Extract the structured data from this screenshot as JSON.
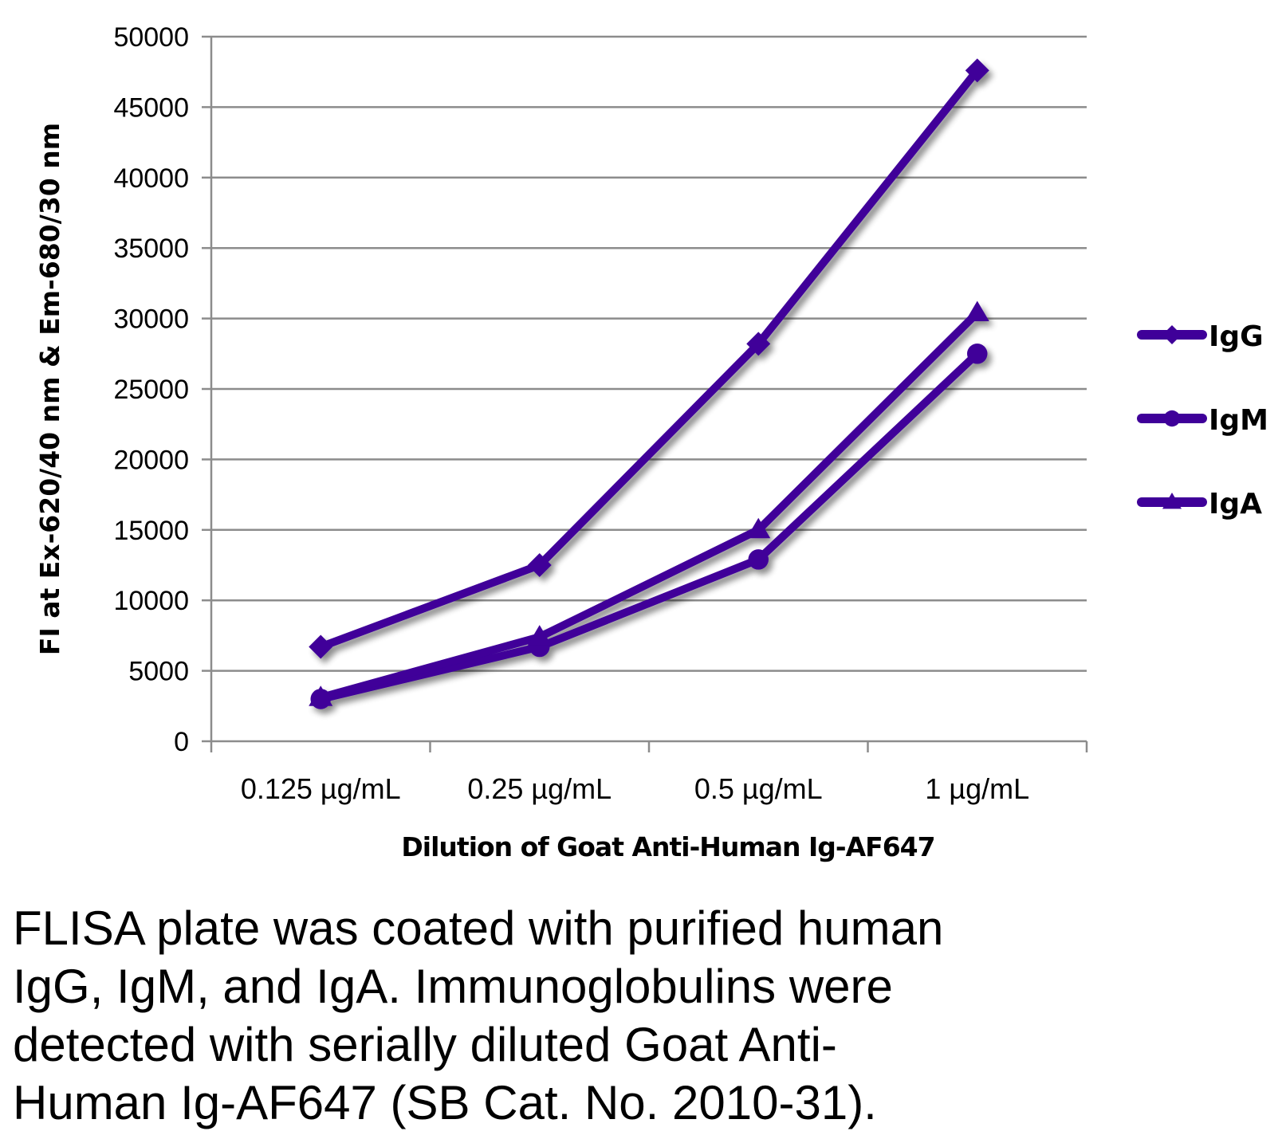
{
  "chart_data": {
    "type": "line",
    "title": "",
    "xlabel": "Dilution of Goat Anti-Human Ig-AF647",
    "ylabel": "FI at Ex-620/40 nm & Em-680/30 nm",
    "categories": [
      "0.125 µg/mL",
      "0.25 µg/mL",
      "0.5 µg/mL",
      "1 µg/mL"
    ],
    "ylim": [
      0,
      50000
    ],
    "yticks": [
      "0",
      "5000",
      "10000",
      "15000",
      "20000",
      "25000",
      "30000",
      "35000",
      "40000",
      "45000",
      "50000"
    ],
    "grid": true,
    "legend": "right",
    "series": [
      {
        "name": "IgG",
        "marker": "diamond",
        "values": [
          6700,
          12500,
          28200,
          47600
        ]
      },
      {
        "name": "IgM",
        "marker": "circle",
        "values": [
          3000,
          6700,
          12900,
          27500
        ]
      },
      {
        "name": "IgA",
        "marker": "triangle",
        "values": [
          3100,
          7400,
          15000,
          30400
        ]
      }
    ],
    "colors": {
      "series": "#3f0099",
      "grid": "#8c8c8c",
      "axis": "#8c8c8c"
    }
  },
  "caption": [
    "FLISA plate was coated with purified human",
    "IgG, IgM, and IgA.  Immunoglobulins were",
    "detected with serially diluted Goat Anti-",
    "Human Ig-AF647 (SB Cat. No. 2010-31)."
  ]
}
